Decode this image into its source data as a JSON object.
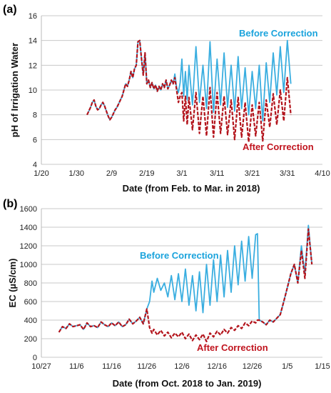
{
  "chart_data": [
    {
      "panel_label": "(a)",
      "type": "line",
      "xlabel": "Date (from Feb. to Mar. in 2018)",
      "ylabel": "pH of Irrigation Water",
      "x_tick_labels": [
        "1/20",
        "1/30",
        "2/9",
        "2/19",
        "3/1",
        "3/11",
        "3/21",
        "3/31",
        "4/10"
      ],
      "y_ticks": [
        4,
        6,
        8,
        10,
        12,
        14,
        16
      ],
      "xlim_days": [
        0,
        80
      ],
      "ylim": [
        4,
        16
      ],
      "grid": "horizontal",
      "annotations": [
        {
          "text": "Before Correction",
          "color": "#1aa3dc",
          "anchor": [
            61,
            15.3
          ]
        },
        {
          "text": "After Correction",
          "color": "#c0141e",
          "anchor": [
            61,
            6.0
          ]
        }
      ],
      "series": [
        {
          "color": "#3aaee0",
          "style": "solid",
          "x": [
            13,
            13.5,
            14,
            14.5,
            15,
            15.5,
            16,
            16.5,
            17,
            17.5,
            18,
            18.5,
            19,
            19.5,
            20,
            20.5,
            21,
            21.5,
            22,
            22.5,
            23,
            23.5,
            24,
            24.5,
            25,
            25.5,
            26,
            26.5,
            27,
            27.5,
            28,
            28.5,
            29,
            29.5,
            30,
            30.5,
            31,
            31.5,
            32,
            32.5,
            33,
            33.5,
            34,
            34.5,
            35,
            35.5,
            36,
            36.5,
            37,
            37.5,
            38,
            38.5,
            39,
            39.5,
            40,
            40.5,
            41,
            41.5,
            42,
            43,
            44,
            45,
            46,
            47,
            48,
            49,
            50,
            51,
            52,
            53,
            54,
            55,
            56,
            57,
            58,
            59,
            60,
            61,
            62,
            63,
            64,
            65,
            66,
            67,
            68,
            69,
            70,
            71
          ],
          "y": [
            8.0,
            8.3,
            8.6,
            9.0,
            9.2,
            8.7,
            8.4,
            8.5,
            8.8,
            9.0,
            8.7,
            8.3,
            7.9,
            7.6,
            7.8,
            8.1,
            8.4,
            8.6,
            8.9,
            9.2,
            9.5,
            10.0,
            10.5,
            10.3,
            10.8,
            11.5,
            11.0,
            11.7,
            12.0,
            13.9,
            14.0,
            12.5,
            11.2,
            13.0,
            10.5,
            10.8,
            10.2,
            10.6,
            10.1,
            10.4,
            9.9,
            10.3,
            10.0,
            10.5,
            10.2,
            10.8,
            10.1,
            10.4,
            10.8,
            10.5,
            11.3,
            10.2,
            9.8,
            10.6,
            12.5,
            9.5,
            11.5,
            9.2,
            12.0,
            8.8,
            13.5,
            9.0,
            12.0,
            8.5,
            13.9,
            8.2,
            12.5,
            8.8,
            13.0,
            8.6,
            12.0,
            8.3,
            12.7,
            8.5,
            11.8,
            8.0,
            11.5,
            8.5,
            12.0,
            7.5,
            12.2,
            9.0,
            13.0,
            9.6,
            13.5,
            9.8,
            14.0,
            10.5
          ]
        },
        {
          "color": "#b3141c",
          "style": "dashed",
          "x": [
            13,
            13.5,
            14,
            14.5,
            15,
            15.5,
            16,
            16.5,
            17,
            17.5,
            18,
            18.5,
            19,
            19.5,
            20,
            20.5,
            21,
            21.5,
            22,
            22.5,
            23,
            23.5,
            24,
            24.5,
            25,
            25.5,
            26,
            26.5,
            27,
            27.5,
            28,
            28.5,
            29,
            29.5,
            30,
            30.5,
            31,
            31.5,
            32,
            32.5,
            33,
            33.5,
            34,
            34.5,
            35,
            35.5,
            36,
            36.5,
            37,
            37.5,
            38,
            38.5,
            39,
            39.5,
            40,
            40.5,
            41,
            41.5,
            42,
            43,
            44,
            45,
            46,
            47,
            48,
            49,
            50,
            51,
            52,
            53,
            54,
            55,
            56,
            57,
            58,
            59,
            60,
            61,
            62,
            63,
            64,
            65,
            66,
            67,
            68,
            69,
            70,
            71
          ],
          "y": [
            8.0,
            8.3,
            8.6,
            9.0,
            9.2,
            8.7,
            8.4,
            8.5,
            8.8,
            9.0,
            8.7,
            8.3,
            7.9,
            7.6,
            7.8,
            8.1,
            8.4,
            8.6,
            8.9,
            9.2,
            9.5,
            10.0,
            10.5,
            10.3,
            10.8,
            11.5,
            11.0,
            11.7,
            12.0,
            13.9,
            14.0,
            12.5,
            11.2,
            13.0,
            10.5,
            10.8,
            10.2,
            10.6,
            10.1,
            10.4,
            9.9,
            10.3,
            10.0,
            10.5,
            10.2,
            10.8,
            10.1,
            10.4,
            10.8,
            10.5,
            11.0,
            10.0,
            9.0,
            9.5,
            9.8,
            7.5,
            9.5,
            7.2,
            9.4,
            6.8,
            9.8,
            6.5,
            9.5,
            6.3,
            10.2,
            6.2,
            9.8,
            6.5,
            9.5,
            6.4,
            9.2,
            6.0,
            9.4,
            6.2,
            9.0,
            5.8,
            8.8,
            6.3,
            9.0,
            5.9,
            9.2,
            7.0,
            9.7,
            7.2,
            10.0,
            7.5,
            11.0,
            8.0
          ]
        }
      ]
    },
    {
      "panel_label": "(b)",
      "type": "line",
      "xlabel": "Date (from Oct. 2018 to Jan. 2019)",
      "ylabel": "EC (µS/cm)",
      "x_tick_labels": [
        "10/27",
        "11/6",
        "11/16",
        "11/26",
        "12/6",
        "12/16",
        "12/26",
        "1/5",
        "1/15"
      ],
      "y_ticks": [
        0,
        200,
        400,
        600,
        800,
        1000,
        1200,
        1400,
        1600
      ],
      "xlim_days": [
        0,
        80
      ],
      "ylim": [
        0,
        1600
      ],
      "grid": "horizontal",
      "annotations": [
        {
          "text": "Before Correction",
          "color": "#1aa3dc",
          "anchor": [
            20,
            1060
          ]
        },
        {
          "text": "After Correction",
          "color": "#c0141e",
          "anchor": [
            33,
            90
          ]
        }
      ],
      "series": [
        {
          "color": "#3aaee0",
          "style": "solid",
          "x": [
            5,
            6,
            7,
            8,
            9,
            10,
            11,
            12,
            13,
            14,
            15,
            16,
            17,
            18,
            19,
            20,
            21,
            22,
            23,
            24,
            25,
            26,
            27,
            28,
            29,
            30,
            30.8,
            31.5,
            32,
            33,
            34,
            35,
            36,
            37,
            38,
            39,
            40,
            41,
            42,
            43,
            44,
            45,
            46,
            47,
            48,
            49,
            50,
            51,
            52,
            53,
            54,
            55,
            56,
            57,
            58,
            59,
            60,
            61,
            61.5,
            62,
            63,
            64,
            65,
            66,
            67,
            68,
            69,
            70,
            71,
            72,
            73,
            74,
            75,
            76,
            77
          ],
          "y": [
            270,
            330,
            310,
            360,
            330,
            340,
            350,
            300,
            370,
            330,
            340,
            320,
            380,
            350,
            330,
            370,
            340,
            380,
            330,
            350,
            410,
            360,
            390,
            430,
            360,
            520,
            600,
            820,
            700,
            850,
            720,
            800,
            650,
            880,
            620,
            900,
            600,
            950,
            560,
            880,
            500,
            920,
            480,
            1000,
            560,
            1050,
            600,
            1100,
            650,
            1150,
            700,
            1200,
            780,
            1250,
            820,
            1300,
            850,
            1320,
            1330,
            400,
            380,
            350,
            400,
            380,
            420,
            460,
            600,
            750,
            900,
            1000,
            800,
            1200,
            900,
            1420,
            1000
          ]
        },
        {
          "color": "#b3141c",
          "style": "dashed",
          "x": [
            5,
            6,
            7,
            8,
            9,
            10,
            11,
            12,
            13,
            14,
            15,
            16,
            17,
            18,
            19,
            20,
            21,
            22,
            23,
            24,
            25,
            26,
            27,
            28,
            29,
            30,
            30.8,
            31.5,
            32,
            33,
            34,
            35,
            36,
            37,
            38,
            39,
            40,
            41,
            42,
            43,
            44,
            45,
            46,
            47,
            48,
            49,
            50,
            51,
            52,
            53,
            54,
            55,
            56,
            57,
            58,
            59,
            60,
            61,
            61.5,
            62,
            63,
            64,
            65,
            66,
            67,
            68,
            69,
            70,
            71,
            72,
            73,
            74,
            75,
            76,
            77
          ],
          "y": [
            270,
            330,
            310,
            360,
            330,
            340,
            350,
            300,
            370,
            330,
            340,
            320,
            380,
            350,
            330,
            370,
            340,
            380,
            330,
            350,
            410,
            360,
            390,
            430,
            360,
            520,
            320,
            260,
            300,
            240,
            290,
            230,
            270,
            210,
            260,
            220,
            270,
            200,
            250,
            180,
            240,
            190,
            250,
            170,
            260,
            220,
            280,
            240,
            300,
            260,
            320,
            290,
            340,
            310,
            370,
            340,
            390,
            370,
            400,
            400,
            380,
            350,
            400,
            380,
            420,
            460,
            600,
            750,
            900,
            1000,
            800,
            1150,
            850,
            1380,
            1000
          ]
        }
      ]
    }
  ]
}
